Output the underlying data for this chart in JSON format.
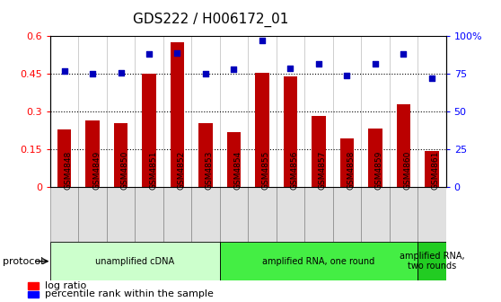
{
  "title": "GDS222 / H006172_01",
  "samples": [
    "GSM4848",
    "GSM4849",
    "GSM4850",
    "GSM4851",
    "GSM4852",
    "GSM4853",
    "GSM4854",
    "GSM4855",
    "GSM4856",
    "GSM4857",
    "GSM4858",
    "GSM4859",
    "GSM4860",
    "GSM4861"
  ],
  "log_ratio": [
    0.23,
    0.265,
    0.255,
    0.45,
    0.575,
    0.255,
    0.22,
    0.455,
    0.44,
    0.285,
    0.195,
    0.235,
    0.33,
    0.145
  ],
  "percentile": [
    77,
    75,
    76,
    88,
    89,
    75,
    78,
    97,
    79,
    82,
    74,
    82,
    88,
    72
  ],
  "bar_color": "#bb0000",
  "dot_color": "#0000bb",
  "cell_bg": "#e0e0e0",
  "plot_bg": "#ffffff",
  "protocol_groups": [
    {
      "label": "unamplified cDNA",
      "start": 0,
      "end": 5,
      "color": "#ccffcc"
    },
    {
      "label": "amplified RNA, one round",
      "start": 6,
      "end": 12,
      "color": "#44ee44"
    },
    {
      "label": "amplified RNA,\ntwo rounds",
      "start": 13,
      "end": 13,
      "color": "#22cc22"
    }
  ],
  "ylim_left": [
    0,
    0.6
  ],
  "ylim_right": [
    0,
    100
  ],
  "yticks_left": [
    0,
    0.15,
    0.3,
    0.45,
    0.6
  ],
  "ytick_labels_left": [
    "0",
    "0.15",
    "0.3",
    "0.45",
    "0.6"
  ],
  "yticks_right": [
    0,
    25,
    50,
    75,
    100
  ],
  "ytick_labels_right": [
    "0",
    "25",
    "50",
    "75",
    "100%"
  ],
  "hlines": [
    0.15,
    0.3,
    0.45
  ],
  "bar_width": 0.5
}
